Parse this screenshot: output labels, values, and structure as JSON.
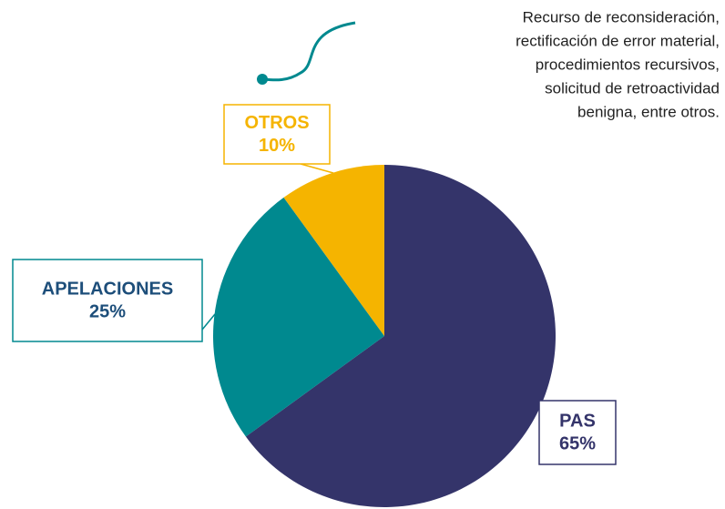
{
  "chart_data": {
    "type": "pie",
    "categories": [
      "PAS",
      "APELACIONES",
      "OTROS"
    ],
    "values": [
      65,
      25,
      10
    ],
    "value_labels": [
      "65%",
      "25%",
      "10%"
    ],
    "colors": [
      "#34346a",
      "#00898f",
      "#f5b400"
    ],
    "annotation": [
      "Recurso de reconsideración,",
      "rectificación de error material,",
      "procedimientos recursivos,",
      "solicitud de retroactividad",
      "benigna, entre otros."
    ]
  }
}
